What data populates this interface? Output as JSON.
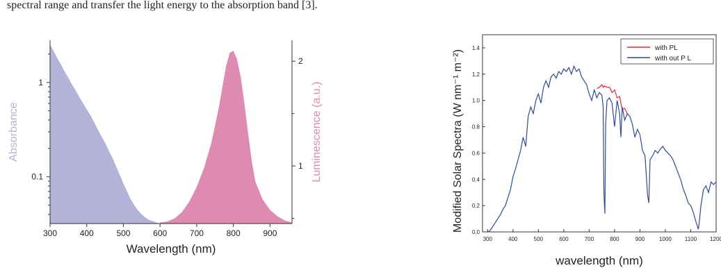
{
  "caption": "spectral range and transfer the light energy to the absorption band [3].",
  "chart_data": [
    {
      "type": "area",
      "xlabel": "Wavelength (nm)",
      "ylabel_left": "Absorbance",
      "ylabel_right": "Luminescence (a.u.)",
      "x_ticks": [
        "300",
        "400",
        "500",
        "600",
        "700",
        "800",
        "900"
      ],
      "y_left_ticks": [
        "0.1",
        "1"
      ],
      "y_left_scale": "log",
      "y_left_lim": [
        0.032,
        2.8
      ],
      "y_right_ticks": [
        "1",
        "2"
      ],
      "y_right_lim": [
        0.45,
        2.2
      ],
      "xlim": [
        300,
        960
      ],
      "colors": {
        "absorbance": "#b3b3d9",
        "luminescence": "#de8ab1",
        "absorbance_label": "#b3b3d9",
        "luminescence_label": "#de8ab1"
      },
      "series": [
        {
          "axis": "left",
          "x": [
            300,
            310,
            320,
            330,
            340,
            350,
            360,
            370,
            380,
            390,
            400,
            410,
            420,
            430,
            440,
            450,
            460,
            470,
            480,
            490,
            500,
            510,
            520,
            530,
            540,
            550,
            560,
            570,
            580,
            590,
            600,
            610
          ],
          "values": [
            2.5,
            2.15,
            1.8,
            1.55,
            1.3,
            1.12,
            0.95,
            0.82,
            0.7,
            0.6,
            0.52,
            0.45,
            0.38,
            0.32,
            0.27,
            0.23,
            0.19,
            0.16,
            0.13,
            0.105,
            0.085,
            0.07,
            0.058,
            0.05,
            0.044,
            0.04,
            0.037,
            0.035,
            0.034,
            0.033,
            0.032,
            0.032
          ]
        },
        {
          "axis": "right",
          "x": [
            600,
            620,
            640,
            660,
            680,
            700,
            720,
            740,
            760,
            770,
            780,
            790,
            800,
            810,
            820,
            830,
            840,
            850,
            860,
            880,
            900,
            920,
            940,
            960
          ],
          "values": [
            0.46,
            0.47,
            0.5,
            0.56,
            0.66,
            0.8,
            0.98,
            1.22,
            1.55,
            1.75,
            1.95,
            2.08,
            2.1,
            2.02,
            1.85,
            1.6,
            1.32,
            1.05,
            0.85,
            0.68,
            0.58,
            0.52,
            0.48,
            0.46
          ]
        }
      ]
    },
    {
      "type": "line",
      "xlabel": "wavelength (nm)",
      "ylabel": "Modified Solar Spectra (W nm⁻¹ m⁻²)",
      "xlim": [
        280,
        1200
      ],
      "ylim": [
        0.0,
        1.5
      ],
      "x_ticks": [
        "300",
        "400",
        "500",
        "600",
        "700",
        "800",
        "900",
        "1000",
        "1100",
        "1200"
      ],
      "y_ticks": [
        "0.0",
        "0.2",
        "0.4",
        "0.6",
        "0.8",
        "1.0",
        "1.2",
        "1.4"
      ],
      "legend_position": "top-right",
      "colors": {
        "with_pl": "#e8283c",
        "without_pl": "#2c4a9c"
      },
      "series": [
        {
          "name": "with PL",
          "x": [
            730,
            740,
            750,
            755,
            760,
            770,
            780,
            790,
            800,
            810,
            820,
            830,
            840,
            850
          ],
          "values": [
            1.09,
            1.1,
            1.12,
            1.1,
            1.11,
            1.1,
            1.1,
            1.06,
            1.08,
            1.02,
            1.03,
            0.93,
            0.94,
            0.9
          ]
        },
        {
          "name": "with out P L",
          "x": [
            300,
            310,
            320,
            330,
            340,
            350,
            360,
            370,
            380,
            390,
            400,
            410,
            420,
            430,
            440,
            450,
            460,
            470,
            480,
            490,
            500,
            510,
            520,
            530,
            540,
            550,
            560,
            570,
            580,
            590,
            600,
            610,
            620,
            630,
            640,
            650,
            660,
            670,
            680,
            690,
            700,
            710,
            720,
            730,
            740,
            750,
            755,
            758,
            762,
            765,
            770,
            780,
            790,
            800,
            810,
            820,
            825,
            830,
            840,
            850,
            860,
            870,
            880,
            890,
            900,
            910,
            920,
            930,
            935,
            940,
            950,
            960,
            970,
            980,
            990,
            1000,
            1010,
            1020,
            1030,
            1040,
            1050,
            1060,
            1070,
            1080,
            1090,
            1100,
            1110,
            1120,
            1130,
            1135,
            1140,
            1150,
            1160,
            1170,
            1180,
            1190,
            1200
          ],
          "values": [
            0.0,
            0.01,
            0.04,
            0.07,
            0.1,
            0.13,
            0.17,
            0.2,
            0.26,
            0.32,
            0.42,
            0.48,
            0.55,
            0.62,
            0.72,
            0.65,
            0.88,
            0.95,
            0.9,
            1.0,
            1.05,
            0.98,
            1.1,
            1.15,
            1.1,
            1.18,
            1.2,
            1.17,
            1.22,
            1.2,
            1.24,
            1.22,
            1.25,
            1.2,
            1.26,
            1.22,
            1.24,
            1.18,
            1.15,
            1.12,
            1.05,
            1.0,
            1.08,
            1.02,
            1.06,
            1.04,
            0.95,
            0.3,
            0.14,
            0.82,
            1.0,
            1.02,
            0.98,
            0.8,
            1.0,
            0.9,
            0.72,
            0.95,
            0.85,
            0.9,
            0.88,
            0.82,
            0.72,
            0.78,
            0.74,
            0.62,
            0.58,
            0.28,
            0.22,
            0.55,
            0.58,
            0.62,
            0.6,
            0.63,
            0.65,
            0.62,
            0.6,
            0.58,
            0.55,
            0.5,
            0.45,
            0.4,
            0.33,
            0.28,
            0.22,
            0.2,
            0.15,
            0.08,
            0.02,
            0.1,
            0.2,
            0.32,
            0.35,
            0.3,
            0.38,
            0.36,
            0.38
          ]
        }
      ]
    }
  ]
}
